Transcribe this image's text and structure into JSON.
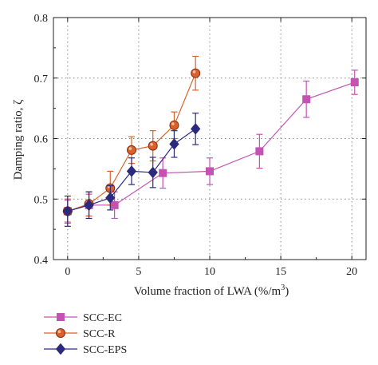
{
  "chart_data": {
    "type": "scatter",
    "title": "",
    "xlabel": "Volume fraction of LWA (%/m",
    "xlabel_sup": "3",
    "xlabel_tail": ")",
    "ylabel": "Damping ratio, ζ",
    "xlim": [
      -1,
      21
    ],
    "ylim": [
      0.4,
      0.8
    ],
    "xticks": [
      0,
      5,
      10,
      15,
      20
    ],
    "xtick_labels": [
      "0",
      "5",
      "10",
      "15",
      "20"
    ],
    "yticks": [
      0.4,
      0.5,
      0.6,
      0.7,
      0.8
    ],
    "ytick_labels": [
      "0.4",
      "0.5",
      "0.6",
      "0.7",
      "0.8"
    ],
    "grid": true,
    "legend_position": "bottom-left",
    "series": [
      {
        "name": "SCC-EC",
        "color": "#c452b3",
        "marker": "square",
        "x": [
          0,
          1.5,
          3.3,
          6.7,
          10,
          13.5,
          16.8,
          20.2
        ],
        "y": [
          0.48,
          0.49,
          0.49,
          0.543,
          0.546,
          0.579,
          0.665,
          0.693
        ],
        "err": [
          0.018,
          0.018,
          0.022,
          0.025,
          0.022,
          0.028,
          0.03,
          0.02
        ]
      },
      {
        "name": "SCC-R",
        "color": "#d9622b",
        "marker": "circle",
        "x": [
          0,
          1.5,
          3.0,
          4.5,
          6.0,
          7.5,
          9.0
        ],
        "y": [
          0.48,
          0.492,
          0.518,
          0.581,
          0.588,
          0.622,
          0.708
        ],
        "err": [
          0.02,
          0.02,
          0.028,
          0.022,
          0.025,
          0.022,
          0.028
        ]
      },
      {
        "name": "SCC-EPS",
        "color": "#2b2a7e",
        "marker": "diamond",
        "x": [
          0,
          1.5,
          3.0,
          4.5,
          6.0,
          7.5,
          9.0
        ],
        "y": [
          0.48,
          0.49,
          0.502,
          0.546,
          0.544,
          0.591,
          0.616
        ],
        "err": [
          0.025,
          0.022,
          0.02,
          0.022,
          0.025,
          0.022,
          0.026
        ]
      }
    ]
  }
}
